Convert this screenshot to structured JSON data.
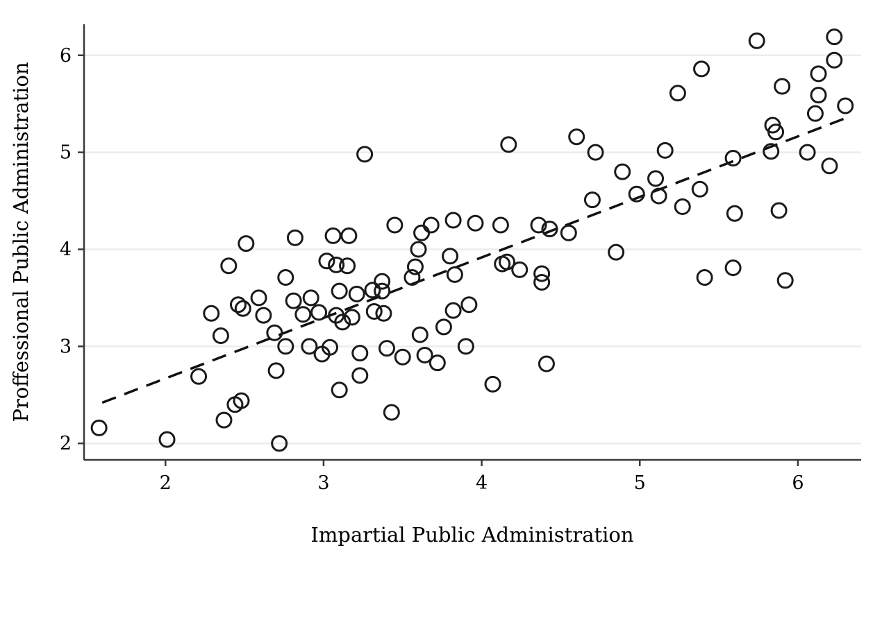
{
  "chart_data": {
    "type": "scatter",
    "title": "",
    "xlabel": "Impartial Public Administration",
    "ylabel": "Proffessional Public Administration",
    "xlim": [
      1.485,
      6.4
    ],
    "ylim": [
      1.83,
      6.32
    ],
    "xticks": [
      "2",
      "3",
      "4",
      "5",
      "6"
    ],
    "yticks": [
      "2",
      "3",
      "4",
      "5",
      "6"
    ],
    "xtick_values": [
      2,
      3,
      4,
      5,
      6
    ],
    "ytick_values": [
      2,
      3,
      4,
      5,
      6
    ],
    "grid": "horizontal-only",
    "legend": "none",
    "marker": {
      "shape": "open-circle",
      "radius_px": 10.5,
      "stroke_px": 3,
      "color": "#1a1a1a"
    },
    "fit_line": {
      "style": "dashed",
      "color": "#111111",
      "slope": 0.624,
      "intercept": 1.42,
      "x_start": 1.6,
      "y_start": 2.42,
      "x_end": 6.33,
      "y_end": 5.37
    },
    "points": [
      [
        1.58,
        2.16
      ],
      [
        2.01,
        2.04
      ],
      [
        2.21,
        2.69
      ],
      [
        2.37,
        2.24
      ],
      [
        2.44,
        2.4
      ],
      [
        2.48,
        2.44
      ],
      [
        2.35,
        3.11
      ],
      [
        2.69,
        3.14
      ],
      [
        2.72,
        2.0
      ],
      [
        2.7,
        2.75
      ],
      [
        2.51,
        4.06
      ],
      [
        2.4,
        3.83
      ],
      [
        2.59,
        3.5
      ],
      [
        2.46,
        3.43
      ],
      [
        2.49,
        3.39
      ],
      [
        2.29,
        3.34
      ],
      [
        2.62,
        3.32
      ],
      [
        2.82,
        4.12
      ],
      [
        3.06,
        4.14
      ],
      [
        3.16,
        4.14
      ],
      [
        3.45,
        4.25
      ],
      [
        3.62,
        4.17
      ],
      [
        3.68,
        4.25
      ],
      [
        3.82,
        4.3
      ],
      [
        3.6,
        4.0
      ],
      [
        3.02,
        3.88
      ],
      [
        3.08,
        3.84
      ],
      [
        3.15,
        3.83
      ],
      [
        3.8,
        3.93
      ],
      [
        3.58,
        3.82
      ],
      [
        3.56,
        3.71
      ],
      [
        2.76,
        3.71
      ],
      [
        3.83,
        3.74
      ],
      [
        3.37,
        3.67
      ],
      [
        3.31,
        3.58
      ],
      [
        3.37,
        3.57
      ],
      [
        3.21,
        3.54
      ],
      [
        3.1,
        3.57
      ],
      [
        2.81,
        3.47
      ],
      [
        2.92,
        3.5
      ],
      [
        2.87,
        3.33
      ],
      [
        2.97,
        3.35
      ],
      [
        3.08,
        3.32
      ],
      [
        3.12,
        3.25
      ],
      [
        3.18,
        3.3
      ],
      [
        3.32,
        3.36
      ],
      [
        3.38,
        3.34
      ],
      [
        3.82,
        3.37
      ],
      [
        3.92,
        3.43
      ],
      [
        2.76,
        3.0
      ],
      [
        2.91,
        3.0
      ],
      [
        2.99,
        2.92
      ],
      [
        3.04,
        2.99
      ],
      [
        3.23,
        2.93
      ],
      [
        3.4,
        2.98
      ],
      [
        3.5,
        2.89
      ],
      [
        3.64,
        2.91
      ],
      [
        3.72,
        2.83
      ],
      [
        3.61,
        3.12
      ],
      [
        3.76,
        3.2
      ],
      [
        3.9,
        3.0
      ],
      [
        3.23,
        2.7
      ],
      [
        3.1,
        2.55
      ],
      [
        3.43,
        2.32
      ],
      [
        3.96,
        4.27
      ],
      [
        4.12,
        4.25
      ],
      [
        4.36,
        4.25
      ],
      [
        4.43,
        4.21
      ],
      [
        4.55,
        4.17
      ],
      [
        4.85,
        3.97
      ],
      [
        4.13,
        3.85
      ],
      [
        4.16,
        3.87
      ],
      [
        4.24,
        3.79
      ],
      [
        4.38,
        3.75
      ],
      [
        4.38,
        3.66
      ],
      [
        4.7,
        4.51
      ],
      [
        4.98,
        4.57
      ],
      [
        5.12,
        4.55
      ],
      [
        5.1,
        4.73
      ],
      [
        4.89,
        4.8
      ],
      [
        3.26,
        4.98
      ],
      [
        4.17,
        5.08
      ],
      [
        4.6,
        5.16
      ],
      [
        4.72,
        5.0
      ],
      [
        5.16,
        5.02
      ],
      [
        5.74,
        6.15
      ],
      [
        6.23,
        6.19
      ],
      [
        5.39,
        5.86
      ],
      [
        6.23,
        5.95
      ],
      [
        6.13,
        5.81
      ],
      [
        5.24,
        5.61
      ],
      [
        5.9,
        5.68
      ],
      [
        6.13,
        5.59
      ],
      [
        6.11,
        5.4
      ],
      [
        6.3,
        5.48
      ],
      [
        5.84,
        5.28
      ],
      [
        5.86,
        5.21
      ],
      [
        5.83,
        5.01
      ],
      [
        5.59,
        4.94
      ],
      [
        6.06,
        5.0
      ],
      [
        6.2,
        4.86
      ],
      [
        5.38,
        4.62
      ],
      [
        5.27,
        4.44
      ],
      [
        5.6,
        4.37
      ],
      [
        5.88,
        4.4
      ],
      [
        5.59,
        3.81
      ],
      [
        5.41,
        3.71
      ],
      [
        5.92,
        3.68
      ],
      [
        4.41,
        2.82
      ],
      [
        4.07,
        2.61
      ]
    ]
  },
  "colors": {
    "background": "#ffffff",
    "axis": "#3a3a3a",
    "gridline": "#ececec",
    "marker": "#1a1a1a",
    "fit_line": "#111111",
    "text": "#000000"
  }
}
